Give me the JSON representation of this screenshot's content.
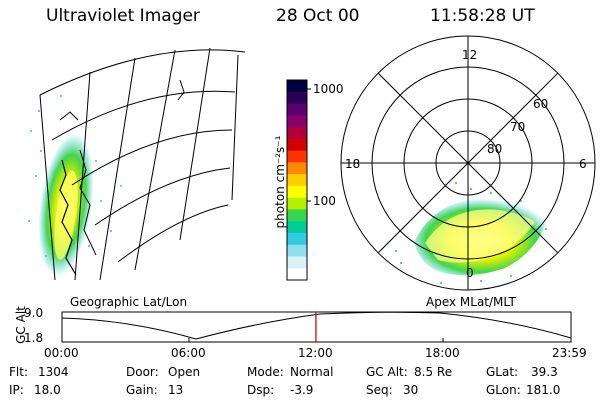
{
  "header": {
    "instrument": "Ultraviolet Imager",
    "date": "28 Oct 00",
    "time": "11:58:28 UT"
  },
  "colorbar": {
    "unit_label": "photon cm⁻²s⁻¹",
    "ticks": [
      "1000",
      "100"
    ],
    "colors": [
      "#000040",
      "#2a0055",
      "#5b0070",
      "#8a006a",
      "#b0003a",
      "#d20000",
      "#ff3300",
      "#ff8800",
      "#ffcc00",
      "#ffff00",
      "#b4f000",
      "#37d54b",
      "#00cc99",
      "#31c9e6",
      "#8fe0ee",
      "#d8f2f5",
      "#ffffff"
    ]
  },
  "geo_panel": {
    "label": "Geographic Lat/Lon"
  },
  "polar_panel": {
    "label": "Apex MLat/MLT",
    "mlt_labels": {
      "top": "12",
      "left": "18",
      "right": "6",
      "bottom": "0"
    },
    "lat_labels": [
      "60",
      "70",
      "80"
    ]
  },
  "timeline": {
    "axis_label": "GC Alt",
    "y_top": "9.0",
    "y_bottom": "1.8",
    "x_labels": [
      "00:00",
      "06:00",
      "12:00",
      "18:00",
      "23:59"
    ],
    "marker_time": "11:58",
    "marker_color": "#dd0000"
  },
  "status": {
    "flt_label": "Flt:",
    "flt_value": "1304",
    "ip_label": "IP:",
    "ip_value": "18.0",
    "door_label": "Door:",
    "door_value": "Open",
    "gain_label": "Gain:",
    "gain_value": "13",
    "mode_label": "Mode:",
    "mode_value": "Normal",
    "dsp_label": "Dsp:",
    "dsp_value": "-3.9",
    "gcalt_label": "GC Alt:",
    "gcalt_value": "8.5 Re",
    "seq_label": "Seq:",
    "seq_value": "30",
    "glat_label": "GLat:",
    "glat_value": "39.3",
    "glon_label": "GLon:",
    "glon_value": "181.0"
  }
}
